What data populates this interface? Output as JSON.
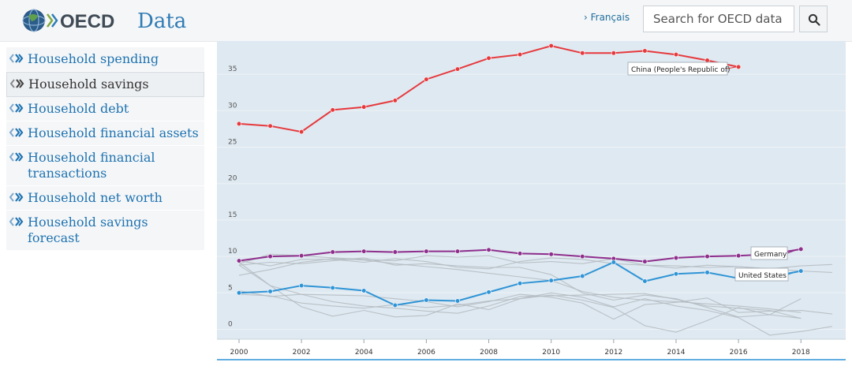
{
  "header": {
    "logo_text": "OECD",
    "section_title": "Data",
    "language_link": "› Français",
    "search_placeholder": "Search for OECD data",
    "search_button_icon": "search-icon"
  },
  "sidebar": {
    "items": [
      {
        "label": "Household spending",
        "active": false
      },
      {
        "label": "Household savings",
        "active": true
      },
      {
        "label": "Household debt",
        "active": false
      },
      {
        "label": "Household financial assets",
        "active": false
      },
      {
        "label": "Household financial transactions",
        "active": false
      },
      {
        "label": "Household net worth",
        "active": false
      },
      {
        "label": "Household savings forecast",
        "active": false
      }
    ]
  },
  "colors": {
    "accent": "#1e73b2",
    "chart_bg": "#dfe9f1",
    "china": "#e6393d",
    "germany": "#8e2e8c",
    "united_states": "#2f94d6",
    "other": "#b5bcc2"
  },
  "chart_data": {
    "type": "line",
    "title": "",
    "xlabel": "",
    "ylabel": "",
    "xlim": [
      2000,
      2019
    ],
    "ylim": [
      -2.5,
      40.5
    ],
    "x_ticks": [
      2000,
      2002,
      2004,
      2006,
      2008,
      2010,
      2012,
      2014,
      2016,
      2018
    ],
    "y_ticks": [
      0,
      5,
      10,
      15,
      20,
      25,
      30,
      35
    ],
    "highlighted_series": [
      {
        "name": "China (People's Republic of)",
        "color": "#e6393d",
        "x": [
          2000,
          2001,
          2002,
          2003,
          2004,
          2005,
          2006,
          2007,
          2008,
          2009,
          2010,
          2011,
          2012,
          2013,
          2014,
          2015,
          2016
        ],
        "values": [
          28.2,
          27.9,
          27.1,
          30.1,
          30.5,
          31.4,
          34.3,
          35.7,
          37.2,
          37.7,
          38.9,
          37.9,
          37.9,
          38.2,
          37.7,
          36.9,
          36.0
        ]
      },
      {
        "name": "Germany",
        "color": "#8e2e8c",
        "x": [
          2000,
          2001,
          2002,
          2003,
          2004,
          2005,
          2006,
          2007,
          2008,
          2009,
          2010,
          2011,
          2012,
          2013,
          2014,
          2015,
          2016,
          2017,
          2018
        ],
        "values": [
          9.4,
          10.0,
          10.1,
          10.6,
          10.7,
          10.6,
          10.7,
          10.7,
          10.9,
          10.4,
          10.3,
          10.0,
          9.7,
          9.3,
          9.8,
          10.0,
          10.1,
          10.3,
          11.0
        ]
      },
      {
        "name": "United States",
        "color": "#2f94d6",
        "x": [
          2000,
          2001,
          2002,
          2003,
          2004,
          2005,
          2006,
          2007,
          2008,
          2009,
          2010,
          2011,
          2012,
          2013,
          2014,
          2015,
          2016,
          2017,
          2018
        ],
        "values": [
          5.0,
          5.2,
          6.0,
          5.7,
          5.3,
          3.3,
          4.0,
          3.9,
          5.1,
          6.3,
          6.7,
          7.3,
          9.2,
          6.6,
          7.6,
          7.8,
          7.0,
          7.2,
          8.0
        ]
      }
    ],
    "background_series": [
      {
        "x": [
          2000,
          2001,
          2002,
          2003,
          2004,
          2005,
          2006,
          2007,
          2008,
          2009,
          2010,
          2011,
          2012,
          2013,
          2014,
          2015,
          2016,
          2017,
          2018
        ],
        "values": [
          7.4,
          8.2,
          9.2,
          9.7,
          9.5,
          9.0,
          8.6,
          8.2,
          7.7,
          7.2,
          6.7,
          5.2,
          4.4,
          4.0,
          3.8,
          3.5,
          3.2,
          2.8,
          2.3
        ]
      },
      {
        "x": [
          2000,
          2001,
          2002,
          2003,
          2004,
          2005,
          2006,
          2007,
          2008,
          2009,
          2010,
          2011,
          2012,
          2013,
          2014,
          2015,
          2016,
          2017,
          2018
        ],
        "values": [
          8.8,
          9.2,
          9.0,
          9.4,
          9.8,
          8.8,
          9.0,
          8.7,
          8.5,
          8.5,
          7.5,
          5.0,
          4.0,
          4.7,
          4.2,
          3.0,
          1.7,
          2.0,
          1.5
        ]
      },
      {
        "x": [
          2000,
          2001,
          2002,
          2003,
          2004,
          2005,
          2006,
          2007,
          2008,
          2009,
          2010,
          2011,
          2012,
          2013,
          2014,
          2015,
          2016,
          2017,
          2018
        ],
        "values": [
          9.2,
          6.0,
          4.8,
          3.8,
          3.2,
          2.9,
          2.5,
          2.2,
          3.2,
          4.5,
          4.6,
          4.7,
          4.8,
          4.9,
          4.1,
          3.2,
          2.9,
          2.6,
          1.5
        ]
      },
      {
        "x": [
          2000,
          2001,
          2002,
          2003,
          2004,
          2005,
          2006,
          2007,
          2008,
          2009,
          2010,
          2011,
          2012,
          2013,
          2014,
          2015,
          2016,
          2017,
          2018,
          2019
        ],
        "values": [
          8.8,
          6.0,
          3.1,
          1.8,
          2.6,
          1.7,
          1.9,
          3.5,
          2.7,
          4.2,
          5.0,
          4.4,
          3.1,
          4.2,
          3.2,
          2.6,
          1.6,
          -0.8,
          -0.3,
          0.4
        ]
      },
      {
        "x": [
          2000,
          2001,
          2002,
          2003,
          2004,
          2005,
          2006,
          2007,
          2008,
          2009,
          2010,
          2011,
          2012,
          2013,
          2014,
          2015,
          2016,
          2017,
          2018,
          2019
        ],
        "values": [
          9.0,
          10.3,
          10.1,
          9.8,
          9.6,
          9.4,
          10.1,
          9.9,
          10.1,
          9.1,
          9.3,
          9.0,
          9.7,
          8.8,
          8.4,
          8.8,
          8.6,
          8.3,
          8.0,
          7.8
        ]
      },
      {
        "x": [
          2000,
          2001,
          2002,
          2003,
          2004,
          2005,
          2006,
          2007,
          2008,
          2009,
          2010,
          2011,
          2012,
          2013,
          2014,
          2015,
          2016,
          2017,
          2018,
          2019
        ],
        "values": [
          9.4,
          8.7,
          9.6,
          9.6,
          9.2,
          9.7,
          9.3,
          8.5,
          8.3,
          9.3,
          9.8,
          9.6,
          9.0,
          8.8,
          8.7,
          8.5,
          8.6,
          8.3,
          8.7,
          8.9
        ]
      },
      {
        "x": [
          2000,
          2001,
          2002,
          2003,
          2004,
          2005,
          2006,
          2007,
          2008,
          2009,
          2010,
          2011,
          2012,
          2013,
          2014,
          2015,
          2016,
          2017,
          2018
        ],
        "values": [
          4.8,
          4.6,
          3.6,
          3.2,
          2.9,
          3.4,
          3.0,
          3.3,
          3.9,
          4.2,
          4.7,
          4.0,
          3.0,
          0.5,
          -0.4,
          1.2,
          3.0,
          2.0,
          4.2
        ]
      },
      {
        "x": [
          2000,
          2001,
          2002,
          2003,
          2004,
          2005,
          2006,
          2007,
          2008,
          2009,
          2010,
          2011,
          2012,
          2013,
          2014,
          2015,
          2016,
          2017,
          2018,
          2019
        ],
        "values": [
          5.3,
          4.5,
          4.8,
          4.7,
          4.6,
          4.2,
          3.8,
          3.1,
          3.8,
          4.8,
          4.4,
          3.6,
          1.4,
          3.4,
          3.7,
          4.3,
          2.3,
          2.5,
          2.6,
          2.1
        ]
      }
    ]
  }
}
